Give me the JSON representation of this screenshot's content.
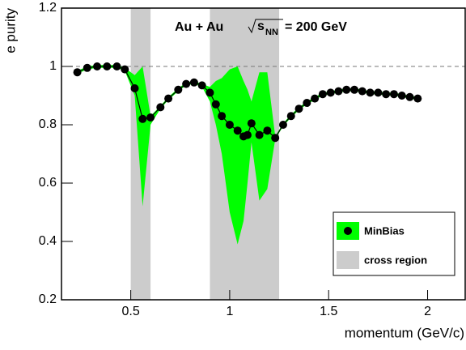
{
  "chart_data": {
    "type": "line",
    "xlabel": "momentum (GeV/c)",
    "ylabel": "e purity",
    "xlim": [
      0.15,
      2.19
    ],
    "ylim": [
      0.2,
      1.2
    ],
    "xticks": [
      0.5,
      1,
      1.5,
      2
    ],
    "yticks": [
      0.2,
      0.4,
      0.6,
      0.8,
      1,
      1.2
    ],
    "reference_line": 1,
    "annotation": {
      "system": "Au + Au",
      "energy_symbol": "s",
      "energy_subscript": "NN",
      "energy_value": "= 200 GeV"
    },
    "cross_region": {
      "name": "cross region",
      "color": "#cccccc",
      "ranges": [
        [
          0.5,
          0.6
        ],
        [
          0.9,
          1.25
        ]
      ]
    },
    "series": [
      {
        "name": "MinBias",
        "color": "#00ff00",
        "marker_color": "#000000",
        "x": [
          0.23,
          0.28,
          0.33,
          0.38,
          0.43,
          0.47,
          0.52,
          0.56,
          0.6,
          0.65,
          0.69,
          0.74,
          0.78,
          0.82,
          0.86,
          0.9,
          0.93,
          0.96,
          1.0,
          1.04,
          1.07,
          1.09,
          1.11,
          1.15,
          1.19,
          1.23,
          1.27,
          1.31,
          1.35,
          1.39,
          1.43,
          1.47,
          1.51,
          1.55,
          1.59,
          1.63,
          1.67,
          1.71,
          1.75,
          1.79,
          1.83,
          1.87,
          1.91,
          1.95
        ],
        "values": [
          0.98,
          0.995,
          1.0,
          1.0,
          1.0,
          0.99,
          0.925,
          0.82,
          0.825,
          0.86,
          0.89,
          0.92,
          0.94,
          0.945,
          0.935,
          0.91,
          0.87,
          0.83,
          0.8,
          0.78,
          0.76,
          0.765,
          0.805,
          0.765,
          0.78,
          0.755,
          0.8,
          0.83,
          0.855,
          0.875,
          0.89,
          0.905,
          0.91,
          0.915,
          0.92,
          0.92,
          0.915,
          0.91,
          0.91,
          0.905,
          0.905,
          0.9,
          0.895,
          0.89
        ],
        "lower": [
          0.975,
          0.99,
          0.995,
          0.995,
          0.995,
          0.985,
          0.9,
          0.52,
          0.8,
          0.855,
          0.885,
          0.915,
          0.935,
          0.94,
          0.93,
          0.88,
          0.8,
          0.7,
          0.5,
          0.39,
          0.47,
          0.6,
          0.74,
          0.54,
          0.58,
          0.75,
          0.795,
          0.825,
          0.85,
          0.87,
          0.885,
          0.9,
          0.905,
          0.91,
          0.915,
          0.915,
          0.91,
          0.905,
          0.905,
          0.9,
          0.9,
          0.895,
          0.89,
          0.885
        ],
        "upper": [
          0.985,
          1.0,
          1.005,
          1.005,
          1.005,
          0.995,
          0.97,
          1.0,
          0.83,
          0.865,
          0.895,
          0.925,
          0.945,
          0.95,
          0.94,
          0.93,
          0.95,
          0.96,
          0.99,
          1.0,
          0.95,
          0.92,
          0.88,
          0.98,
          0.98,
          0.76,
          0.805,
          0.835,
          0.86,
          0.88,
          0.895,
          0.91,
          0.915,
          0.92,
          0.925,
          0.925,
          0.92,
          0.915,
          0.915,
          0.91,
          0.91,
          0.905,
          0.9,
          0.895
        ]
      }
    ]
  }
}
